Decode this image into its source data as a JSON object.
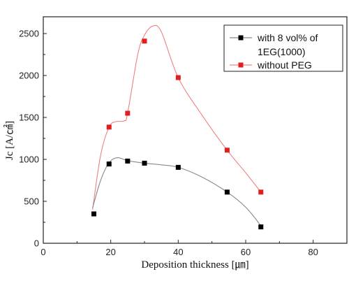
{
  "chart_data": {
    "type": "line",
    "xlabel": "Deposition thickness [㎛]",
    "ylabel": "Jc [A/㎠]",
    "xlim": [
      0,
      90
    ],
    "ylim": [
      0,
      2700
    ],
    "x_ticks": [
      "0",
      "20",
      "40",
      "60",
      "80"
    ],
    "x_tick_values": [
      0,
      20,
      40,
      60,
      80
    ],
    "y_ticks": [
      "0",
      "500",
      "1000",
      "1500",
      "2000",
      "2500"
    ],
    "y_tick_values": [
      0,
      500,
      1000,
      1500,
      2000,
      2500
    ],
    "grid": false,
    "legend_position": "top-right",
    "series": [
      {
        "name": "with 8 vol% of 1EG(1000)",
        "legend_lines": [
          "with 8 vol% of",
          "1EG(1000)"
        ],
        "marker_color": "#000000",
        "line_color": "#888888",
        "points": [
          {
            "x": 15,
            "y": 350
          },
          {
            "x": 19.5,
            "y": 945
          },
          {
            "x": 25,
            "y": 980
          },
          {
            "x": 30,
            "y": 955
          },
          {
            "x": 40,
            "y": 905
          },
          {
            "x": 54.5,
            "y": 610
          },
          {
            "x": 64.5,
            "y": 195
          }
        ],
        "curve": [
          [
            14.6,
            420
          ],
          [
            17,
            750
          ],
          [
            19.5,
            960
          ],
          [
            22,
            1020
          ],
          [
            25,
            985
          ],
          [
            30,
            955
          ],
          [
            35,
            935
          ],
          [
            40,
            905
          ],
          [
            47,
            790
          ],
          [
            54.5,
            610
          ],
          [
            60,
            430
          ],
          [
            64.5,
            210
          ]
        ]
      },
      {
        "name": "without PEG",
        "legend_lines": [
          "without PEG"
        ],
        "marker_color": "#e02020",
        "line_color": "#f08080",
        "points": [
          {
            "x": 15,
            "y": 350
          },
          {
            "x": 19.5,
            "y": 1385
          },
          {
            "x": 25,
            "y": 1550
          },
          {
            "x": 30,
            "y": 2410
          },
          {
            "x": 40,
            "y": 1975
          },
          {
            "x": 54.5,
            "y": 1110
          },
          {
            "x": 64.5,
            "y": 610
          }
        ],
        "curve": [
          [
            14.6,
            400
          ],
          [
            17,
            1050
          ],
          [
            19.5,
            1385
          ],
          [
            21.5,
            1450
          ],
          [
            24,
            1460
          ],
          [
            25,
            1550
          ],
          [
            28,
            2250
          ],
          [
            30,
            2480
          ],
          [
            32.5,
            2590
          ],
          [
            35,
            2520
          ],
          [
            40,
            1975
          ],
          [
            47,
            1530
          ],
          [
            54.5,
            1110
          ],
          [
            60,
            840
          ],
          [
            64.5,
            610
          ]
        ]
      }
    ]
  }
}
